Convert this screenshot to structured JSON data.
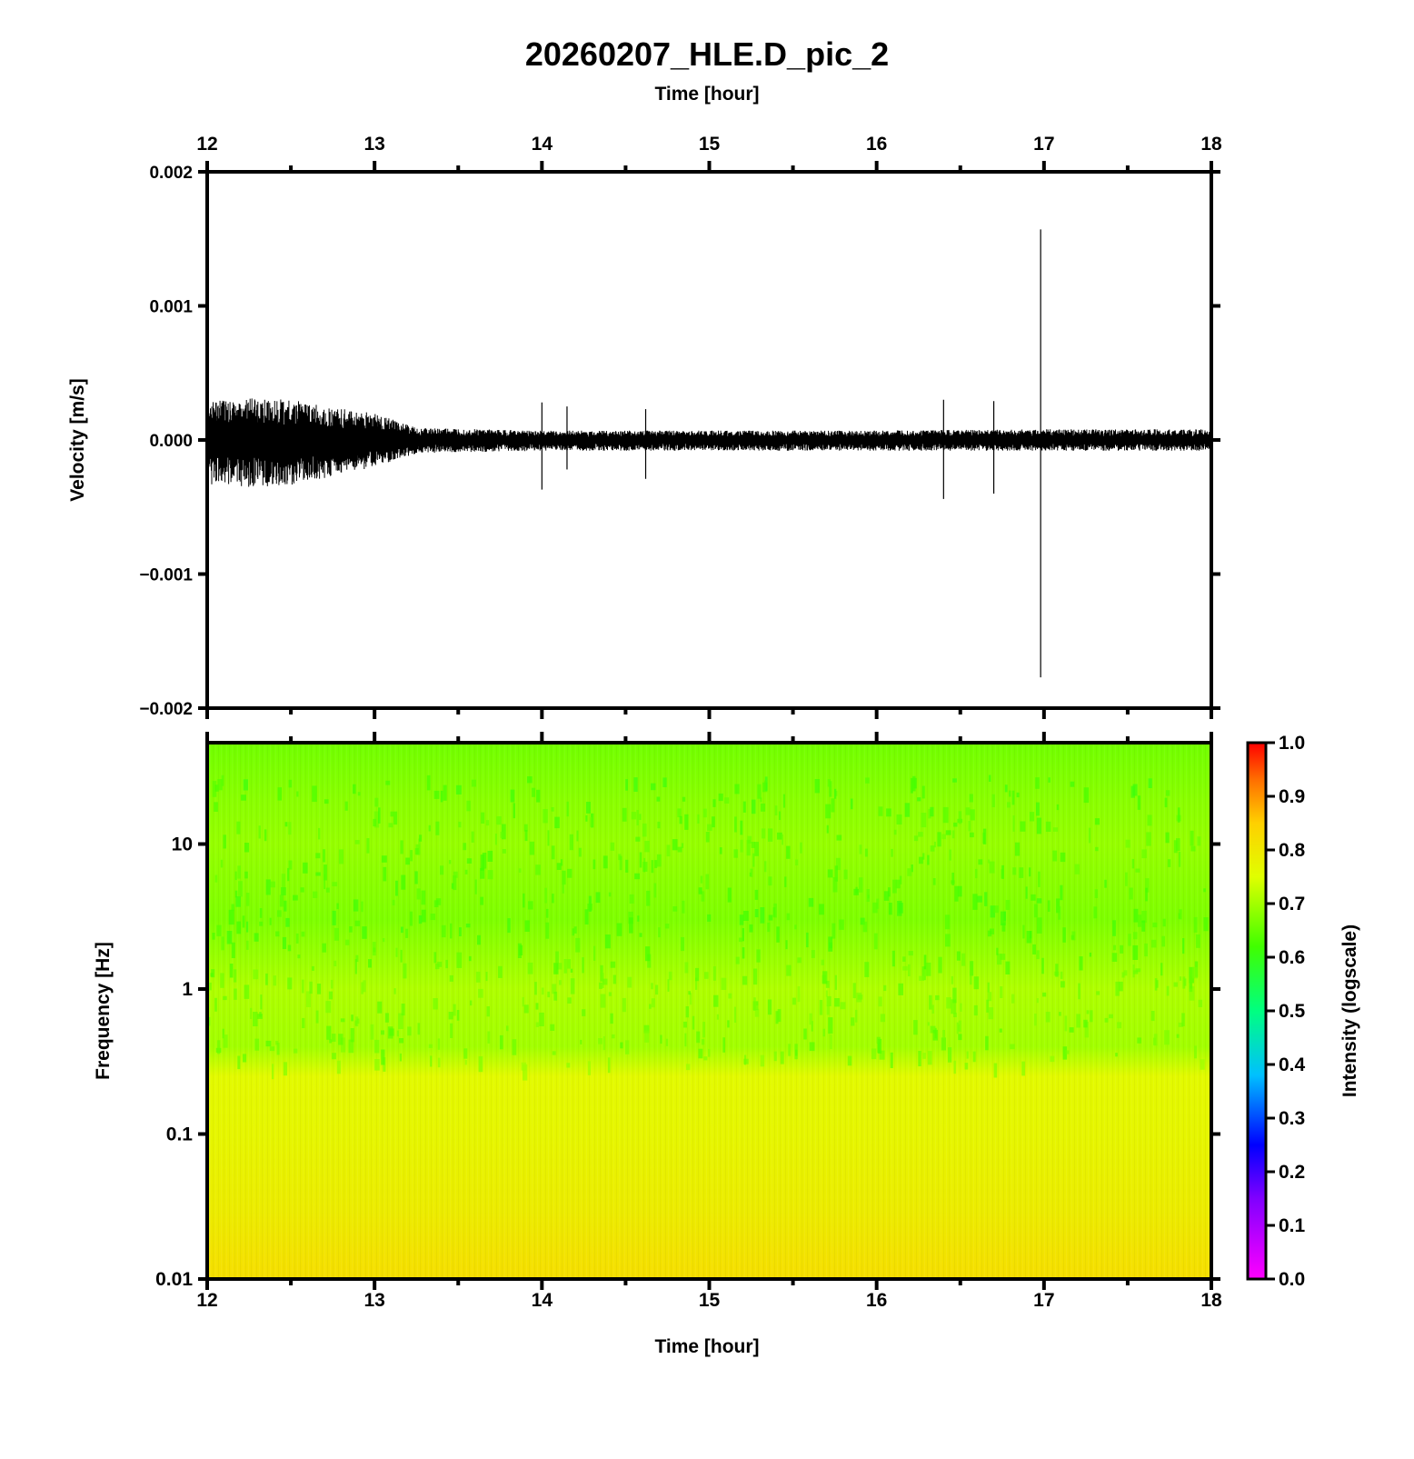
{
  "figure": {
    "title": "20260207_HLE.D_pic_2",
    "top_axis_label": "Time [hour]",
    "bottom_axis_label": "Time [hour]"
  },
  "chart_data": [
    {
      "type": "line",
      "name": "waveform",
      "xlabel": "Time [hour]",
      "ylabel": "Velocity [m/s]",
      "xlim": [
        12,
        18
      ],
      "ylim": [
        -0.002,
        0.002
      ],
      "x_ticks": [
        12,
        13,
        14,
        15,
        16,
        17,
        18
      ],
      "x_tick_labels": [
        "12",
        "13",
        "14",
        "15",
        "16",
        "17",
        "18"
      ],
      "y_ticks": [
        0.002,
        0.001,
        0.0,
        -0.001,
        -0.002
      ],
      "y_tick_labels": [
        "0.002",
        "0.001",
        "0.000",
        "−0.001",
        "−0.002"
      ],
      "envelope": [
        {
          "x": 12.0,
          "max": 0.00029,
          "min": -0.00033
        },
        {
          "x": 12.25,
          "max": 0.00031,
          "min": -0.00035
        },
        {
          "x": 12.5,
          "max": 0.0003,
          "min": -0.00034
        },
        {
          "x": 12.75,
          "max": 0.00024,
          "min": -0.00027
        },
        {
          "x": 13.0,
          "max": 0.0002,
          "min": -0.0002
        },
        {
          "x": 13.25,
          "max": 9e-05,
          "min": -0.0001
        },
        {
          "x": 14.0,
          "max": 7e-05,
          "min": -8e-05
        },
        {
          "x": 15.0,
          "max": 7e-05,
          "min": -8e-05
        },
        {
          "x": 16.0,
          "max": 7e-05,
          "min": -8e-05
        },
        {
          "x": 17.0,
          "max": 8e-05,
          "min": -8e-05
        },
        {
          "x": 18.0,
          "max": 8e-05,
          "min": -8e-05
        }
      ],
      "spikes": [
        {
          "x": 14.0,
          "max": 0.00028,
          "min": -0.00037
        },
        {
          "x": 14.15,
          "max": 0.00025,
          "min": -0.00022
        },
        {
          "x": 14.62,
          "max": 0.00023,
          "min": -0.00029
        },
        {
          "x": 16.4,
          "max": 0.0003,
          "min": -0.00044
        },
        {
          "x": 16.7,
          "max": 0.00029,
          "min": -0.0004
        },
        {
          "x": 16.98,
          "max": 0.00157,
          "min": -0.00177
        }
      ]
    },
    {
      "type": "heatmap",
      "name": "spectrogram",
      "xlabel": "Time [hour]",
      "ylabel": "Frequency [Hz]",
      "xlim": [
        12,
        18
      ],
      "ylim": [
        0.01,
        50
      ],
      "y_scale": "log",
      "x_ticks": [
        12,
        13,
        14,
        15,
        16,
        17,
        18
      ],
      "x_tick_labels": [
        "12",
        "13",
        "14",
        "15",
        "16",
        "17",
        "18"
      ],
      "y_ticks": [
        10,
        1,
        0.1,
        0.01
      ],
      "y_tick_labels": [
        "10",
        "1",
        "0.1",
        "0.01"
      ],
      "intensity_profile": [
        {
          "freq": 50,
          "intensity": 0.66
        },
        {
          "freq": 20,
          "intensity": 0.68
        },
        {
          "freq": 10,
          "intensity": 0.69
        },
        {
          "freq": 3,
          "intensity": 0.67
        },
        {
          "freq": 1,
          "intensity": 0.71
        },
        {
          "freq": 0.4,
          "intensity": 0.7
        },
        {
          "freq": 0.25,
          "intensity": 0.76
        },
        {
          "freq": 0.1,
          "intensity": 0.77
        },
        {
          "freq": 0.03,
          "intensity": 0.79
        },
        {
          "freq": 0.01,
          "intensity": 0.82
        }
      ],
      "colorbar": {
        "label": "Intensity (logscale)",
        "range": [
          0.0,
          1.0
        ],
        "ticks": [
          0.0,
          0.1,
          0.2,
          0.3,
          0.4,
          0.5,
          0.6,
          0.7,
          0.8,
          0.9,
          1.0
        ],
        "tick_labels": [
          "0.0",
          "0.1",
          "0.2",
          "0.3",
          "0.4",
          "0.5",
          "0.6",
          "0.7",
          "0.8",
          "0.9",
          "1.0"
        ],
        "colormap_stops": [
          {
            "v": 0.0,
            "color": "#ff00ff"
          },
          {
            "v": 0.15,
            "color": "#8000ff"
          },
          {
            "v": 0.25,
            "color": "#0000ff"
          },
          {
            "v": 0.38,
            "color": "#00c0ff"
          },
          {
            "v": 0.5,
            "color": "#00ff80"
          },
          {
            "v": 0.62,
            "color": "#40ff00"
          },
          {
            "v": 0.75,
            "color": "#e0ff00"
          },
          {
            "v": 0.85,
            "color": "#ffd000"
          },
          {
            "v": 0.93,
            "color": "#ff7000"
          },
          {
            "v": 1.0,
            "color": "#ff0000"
          }
        ]
      }
    }
  ]
}
